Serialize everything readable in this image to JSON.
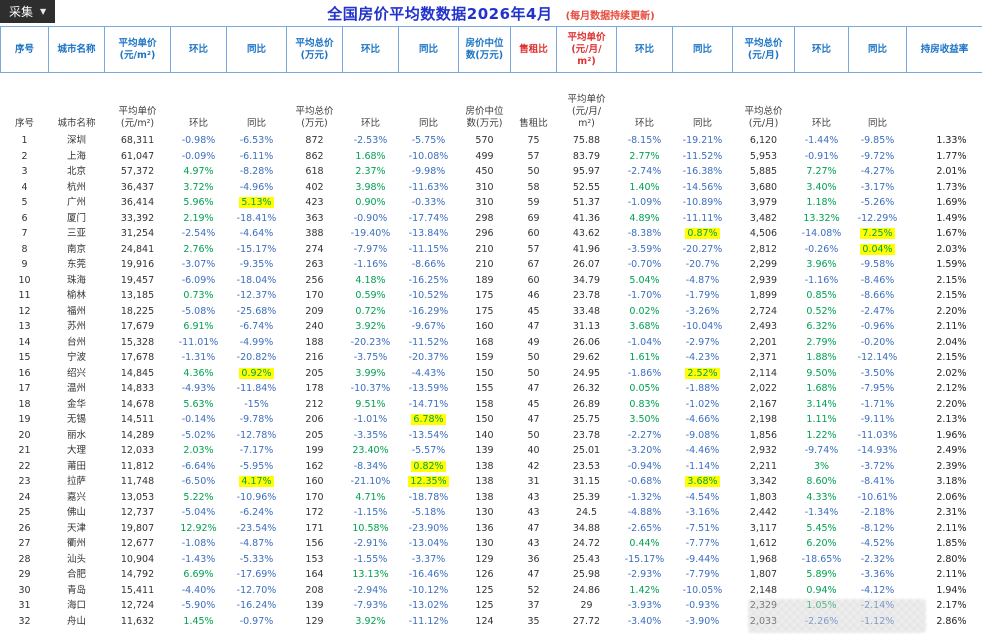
{
  "toolbar": {
    "collect_label": "采集",
    "caret_icon": "▼"
  },
  "header": {
    "title": "全国房价平均数数据2026年4月",
    "subtitle": "(每月数据持续更新)"
  },
  "colors": {
    "title_blue": "#2233cc",
    "sub_red": "#e74c3c",
    "head_blue": "#1d74c4",
    "head_red": "#e03030",
    "grid_blue": "#79a8da",
    "positive_green": "#00a050",
    "negative_blue": "#3d6ebf",
    "highlight_yellow": "#ffff00"
  },
  "table": {
    "columns": [
      {
        "key": "idx",
        "l1": "序号",
        "l2": ""
      },
      {
        "key": "city",
        "l1": "城市名称",
        "l2": ""
      },
      {
        "key": "price",
        "l1": "平均单价",
        "l2": "(元/m²)"
      },
      {
        "key": "hb1",
        "l1": "环比",
        "l2": ""
      },
      {
        "key": "tb1",
        "l1": "同比",
        "l2": ""
      },
      {
        "key": "total",
        "l1": "平均总价",
        "l2": "(万元)"
      },
      {
        "key": "hb2",
        "l1": "环比",
        "l2": ""
      },
      {
        "key": "tb2",
        "l1": "同比",
        "l2": ""
      },
      {
        "key": "median",
        "l1": "房价中位",
        "l2": "数(万元)"
      },
      {
        "key": "ratio",
        "l1": "售租比",
        "l2": "",
        "red": true
      },
      {
        "key": "rent",
        "l1": "平均单价",
        "l2": "(元/月/",
        "l3": "m²)",
        "red": true
      },
      {
        "key": "hb3",
        "l1": "环比",
        "l2": ""
      },
      {
        "key": "tb3",
        "l1": "同比",
        "l2": ""
      },
      {
        "key": "rent_total",
        "l1": "平均总价",
        "l2": "(元/月)"
      },
      {
        "key": "hb4",
        "l1": "环比",
        "l2": ""
      },
      {
        "key": "tb4",
        "l1": "同比",
        "l2": ""
      },
      {
        "key": "yield",
        "l1": "持房收益率",
        "l2": ""
      }
    ],
    "rows": [
      [
        "1",
        "深圳",
        "68,311",
        "-0.98%",
        "-6.53%",
        "872",
        "-2.53%",
        "-5.75%",
        "570",
        "75",
        "75.88",
        "-8.15%",
        "-19.21%",
        "6,120",
        "-1.44%",
        "-9.85%",
        "1.33%"
      ],
      [
        "2",
        "上海",
        "61,047",
        "-0.09%",
        "-6.11%",
        "862",
        "1.68%",
        "-10.08%",
        "499",
        "57",
        "83.79",
        "2.77%",
        "-11.52%",
        "5,953",
        "-0.91%",
        "-9.72%",
        "1.77%"
      ],
      [
        "3",
        "北京",
        "57,372",
        "4.97%",
        "-8.28%",
        "618",
        "2.37%",
        "-9.98%",
        "450",
        "50",
        "95.97",
        "-2.74%",
        "-16.38%",
        "5,885",
        "7.27%",
        "-4.27%",
        "2.01%"
      ],
      [
        "4",
        "杭州",
        "36,437",
        "3.72%",
        "-4.96%",
        "402",
        "3.98%",
        "-11.63%",
        "310",
        "58",
        "52.55",
        "1.40%",
        "-14.56%",
        "3,680",
        "3.40%",
        "-3.17%",
        "1.73%"
      ],
      [
        "5",
        "广州",
        "36,414",
        "5.96%",
        "5.13%",
        "423",
        "0.90%",
        "-0.33%",
        "310",
        "59",
        "51.37",
        "-1.09%",
        "-10.89%",
        "3,979",
        "1.18%",
        "-5.26%",
        "1.69%"
      ],
      [
        "6",
        "厦门",
        "33,392",
        "2.19%",
        "-18.41%",
        "363",
        "-0.90%",
        "-17.74%",
        "298",
        "69",
        "41.36",
        "4.89%",
        "-11.11%",
        "3,482",
        "13.32%",
        "-12.29%",
        "1.49%"
      ],
      [
        "7",
        "三亚",
        "31,254",
        "-2.54%",
        "-4.64%",
        "388",
        "-19.40%",
        "-13.84%",
        "296",
        "60",
        "43.62",
        "-8.38%",
        "0.87%",
        "4,506",
        "-14.08%",
        "7.25%",
        "1.67%"
      ],
      [
        "8",
        "南京",
        "24,841",
        "2.76%",
        "-15.17%",
        "274",
        "-7.97%",
        "-11.15%",
        "210",
        "57",
        "41.96",
        "-3.59%",
        "-20.27%",
        "2,812",
        "-0.26%",
        "0.04%",
        "2.03%"
      ],
      [
        "9",
        "东莞",
        "19,916",
        "-3.07%",
        "-9.35%",
        "263",
        "-1.16%",
        "-8.66%",
        "210",
        "67",
        "26.07",
        "-0.70%",
        "-20.7%",
        "2,299",
        "3.96%",
        "-9.58%",
        "1.59%"
      ],
      [
        "10",
        "珠海",
        "19,457",
        "-6.09%",
        "-18.04%",
        "256",
        "4.18%",
        "-16.25%",
        "189",
        "60",
        "34.79",
        "5.04%",
        "-4.87%",
        "2,939",
        "-1.16%",
        "-8.46%",
        "2.15%"
      ],
      [
        "11",
        "榆林",
        "13,185",
        "0.73%",
        "-12.37%",
        "170",
        "0.59%",
        "-10.52%",
        "175",
        "46",
        "23.78",
        "-1.70%",
        "-1.79%",
        "1,899",
        "0.85%",
        "-8.66%",
        "2.15%"
      ],
      [
        "12",
        "福州",
        "18,225",
        "-5.08%",
        "-25.68%",
        "209",
        "0.72%",
        "-16.29%",
        "175",
        "45",
        "33.48",
        "0.02%",
        "-3.26%",
        "2,724",
        "0.52%",
        "-2.47%",
        "2.20%"
      ],
      [
        "13",
        "苏州",
        "17,679",
        "6.91%",
        "-6.74%",
        "240",
        "3.92%",
        "-9.67%",
        "160",
        "47",
        "31.13",
        "3.68%",
        "-10.04%",
        "2,493",
        "6.32%",
        "-0.96%",
        "2.11%"
      ],
      [
        "14",
        "台州",
        "15,328",
        "-11.01%",
        "-4.99%",
        "188",
        "-20.23%",
        "-11.52%",
        "168",
        "49",
        "26.06",
        "-1.04%",
        "-2.97%",
        "2,201",
        "2.79%",
        "-0.20%",
        "2.04%"
      ],
      [
        "15",
        "宁波",
        "17,678",
        "-1.31%",
        "-20.82%",
        "216",
        "-3.75%",
        "-20.37%",
        "159",
        "50",
        "29.62",
        "1.61%",
        "-4.23%",
        "2,371",
        "1.88%",
        "-12.14%",
        "2.15%"
      ],
      [
        "16",
        "绍兴",
        "14,845",
        "4.36%",
        "0.92%",
        "205",
        "3.99%",
        "-4.43%",
        "150",
        "50",
        "24.95",
        "-1.86%",
        "2.52%",
        "2,114",
        "9.50%",
        "-3.50%",
        "2.02%"
      ],
      [
        "17",
        "温州",
        "14,833",
        "-4.93%",
        "-11.84%",
        "178",
        "-10.37%",
        "-13.59%",
        "155",
        "47",
        "26.32",
        "0.05%",
        "-1.88%",
        "2,022",
        "1.68%",
        "-7.95%",
        "2.12%"
      ],
      [
        "18",
        "金华",
        "14,678",
        "5.63%",
        "-15%",
        "212",
        "9.51%",
        "-14.71%",
        "158",
        "45",
        "26.89",
        "0.83%",
        "-1.02%",
        "2,167",
        "3.14%",
        "-1.71%",
        "2.20%"
      ],
      [
        "19",
        "无锡",
        "14,511",
        "-0.14%",
        "-9.78%",
        "206",
        "-1.01%",
        "6.78%",
        "150",
        "47",
        "25.75",
        "3.50%",
        "-4.66%",
        "2,198",
        "1.11%",
        "-9.11%",
        "2.13%"
      ],
      [
        "20",
        "丽水",
        "14,289",
        "-5.02%",
        "-12.78%",
        "205",
        "-3.35%",
        "-13.54%",
        "140",
        "50",
        "23.78",
        "-2.27%",
        "-9.08%",
        "1,856",
        "1.22%",
        "-11.03%",
        "1.96%"
      ],
      [
        "21",
        "大理",
        "12,033",
        "2.03%",
        "-7.17%",
        "199",
        "23.40%",
        "-5.57%",
        "139",
        "40",
        "25.01",
        "-3.20%",
        "-4.46%",
        "2,932",
        "-9.74%",
        "-14.93%",
        "2.49%"
      ],
      [
        "22",
        "莆田",
        "11,812",
        "-6.64%",
        "-5.95%",
        "162",
        "-8.34%",
        "0.82%",
        "138",
        "42",
        "23.53",
        "-0.94%",
        "-1.14%",
        "2,211",
        "3%",
        "-3.72%",
        "2.39%"
      ],
      [
        "23",
        "拉萨",
        "11,748",
        "-6.50%",
        "4.17%",
        "160",
        "-21.10%",
        "12.35%",
        "138",
        "31",
        "31.15",
        "-0.68%",
        "3.68%",
        "3,342",
        "8.60%",
        "-8.41%",
        "3.18%"
      ],
      [
        "24",
        "嘉兴",
        "13,053",
        "5.22%",
        "-10.96%",
        "170",
        "4.71%",
        "-18.78%",
        "138",
        "43",
        "25.39",
        "-1.32%",
        "-4.54%",
        "1,803",
        "4.33%",
        "-10.61%",
        "2.06%"
      ],
      [
        "25",
        "佛山",
        "12,737",
        "-5.04%",
        "-6.24%",
        "172",
        "-1.15%",
        "-5.18%",
        "130",
        "43",
        "24.5",
        "-4.88%",
        "-3.16%",
        "2,442",
        "-1.34%",
        "-2.18%",
        "2.31%"
      ],
      [
        "26",
        "天津",
        "19,807",
        "12.92%",
        "-23.54%",
        "171",
        "10.58%",
        "-23.90%",
        "136",
        "47",
        "34.88",
        "-2.65%",
        "-7.51%",
        "3,117",
        "5.45%",
        "-8.12%",
        "2.11%"
      ],
      [
        "27",
        "衢州",
        "12,677",
        "-1.08%",
        "-4.87%",
        "156",
        "-2.91%",
        "-13.04%",
        "130",
        "43",
        "24.72",
        "0.44%",
        "-7.77%",
        "1,612",
        "6.20%",
        "-4.52%",
        "1.85%"
      ],
      [
        "28",
        "汕头",
        "10,904",
        "-1.43%",
        "-5.33%",
        "153",
        "-1.55%",
        "-3.37%",
        "129",
        "36",
        "25.43",
        "-15.17%",
        "-9.44%",
        "1,968",
        "-18.65%",
        "-2.32%",
        "2.80%"
      ],
      [
        "29",
        "合肥",
        "14,792",
        "6.69%",
        "-17.69%",
        "164",
        "13.13%",
        "-16.46%",
        "126",
        "47",
        "25.98",
        "-2.93%",
        "-7.79%",
        "1,807",
        "5.89%",
        "-3.36%",
        "2.11%"
      ],
      [
        "30",
        "青岛",
        "15,411",
        "-4.40%",
        "-12.70%",
        "208",
        "-2.94%",
        "-10.12%",
        "125",
        "52",
        "24.86",
        "1.42%",
        "-10.05%",
        "2,148",
        "0.94%",
        "-4.12%",
        "1.94%"
      ],
      [
        "31",
        "海口",
        "12,724",
        "-5.90%",
        "-16.24%",
        "139",
        "-7.93%",
        "-13.02%",
        "125",
        "37",
        "29",
        "-3.93%",
        "-0.93%",
        "2,329",
        "1.05%",
        "-2.14%",
        "2.17%"
      ],
      [
        "32",
        "舟山",
        "11,632",
        "1.45%",
        "-0.97%",
        "129",
        "3.92%",
        "-11.12%",
        "124",
        "35",
        "27.72",
        "-3.40%",
        "-3.90%",
        "2,033",
        "-2.26%",
        "-1.12%",
        "2.86%"
      ]
    ]
  }
}
